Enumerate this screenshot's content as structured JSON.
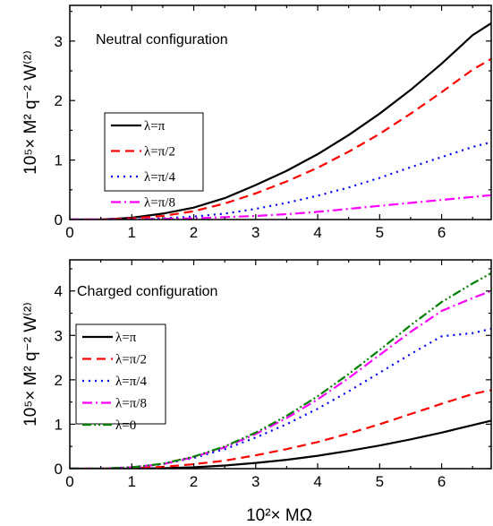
{
  "chart_data": [
    {
      "type": "line",
      "title": "Neutral configuration",
      "xlabel": "",
      "ylabel": "10⁵× M² q⁻² W⁽²⁾",
      "xlim": [
        0,
        6.8
      ],
      "ylim": [
        0,
        3.6
      ],
      "xticks": [
        0,
        1,
        2,
        3,
        4,
        5,
        6
      ],
      "yticks": [
        0,
        1,
        2,
        3
      ],
      "grid": false,
      "legend_position": "left-middle",
      "x": [
        0,
        0.5,
        1.0,
        1.5,
        2.0,
        2.5,
        3.0,
        3.5,
        4.0,
        4.5,
        5.0,
        5.5,
        6.0,
        6.5,
        6.8
      ],
      "series": [
        {
          "name": "λ=π",
          "color": "#000000",
          "dash": "solid",
          "values": [
            0,
            0.0,
            0.03,
            0.1,
            0.2,
            0.36,
            0.58,
            0.82,
            1.1,
            1.42,
            1.78,
            2.18,
            2.62,
            3.1,
            3.3
          ]
        },
        {
          "name": "λ=π/2",
          "color": "#ff0000",
          "dash": "dash",
          "values": [
            0,
            0.0,
            0.02,
            0.06,
            0.14,
            0.27,
            0.44,
            0.64,
            0.87,
            1.14,
            1.44,
            1.78,
            2.14,
            2.52,
            2.7
          ]
        },
        {
          "name": "λ=π/4",
          "color": "#0000ff",
          "dash": "dot",
          "values": [
            0,
            0.0,
            0.0,
            0.02,
            0.05,
            0.1,
            0.18,
            0.28,
            0.4,
            0.54,
            0.7,
            0.88,
            1.05,
            1.22,
            1.3
          ]
        },
        {
          "name": "λ=π/8",
          "color": "#ff00ff",
          "dash": "dashdot",
          "values": [
            0,
            0.0,
            0.0,
            0.01,
            0.02,
            0.04,
            0.06,
            0.09,
            0.13,
            0.18,
            0.23,
            0.28,
            0.33,
            0.38,
            0.41
          ]
        }
      ]
    },
    {
      "type": "line",
      "title": "Charged configuration",
      "xlabel": "10²× MΩ",
      "ylabel": "10⁵× M² q⁻² W⁽²⁾",
      "xlim": [
        0,
        6.8
      ],
      "ylim": [
        0,
        4.7
      ],
      "xticks": [
        0,
        1,
        2,
        3,
        4,
        5,
        6
      ],
      "yticks": [
        0,
        1,
        2,
        3,
        4
      ],
      "grid": false,
      "legend_position": "left-middle",
      "x": [
        0,
        0.5,
        1.0,
        1.5,
        2.0,
        2.5,
        3.0,
        3.5,
        4.0,
        4.5,
        5.0,
        5.5,
        6.0,
        6.5,
        6.8
      ],
      "series": [
        {
          "name": "λ=π",
          "color": "#000000",
          "dash": "solid",
          "values": [
            0,
            0.0,
            0.0,
            0.01,
            0.03,
            0.07,
            0.13,
            0.2,
            0.29,
            0.4,
            0.52,
            0.66,
            0.81,
            0.98,
            1.08
          ]
        },
        {
          "name": "λ=π/2",
          "color": "#ff0000",
          "dash": "dash",
          "values": [
            0,
            0.0,
            0.01,
            0.04,
            0.1,
            0.18,
            0.3,
            0.44,
            0.6,
            0.79,
            1.0,
            1.23,
            1.46,
            1.68,
            1.77
          ]
        },
        {
          "name": "λ=π/4",
          "color": "#0000ff",
          "dash": "dot",
          "values": [
            0,
            0.0,
            0.03,
            0.1,
            0.24,
            0.44,
            0.7,
            1.0,
            1.35,
            1.74,
            2.16,
            2.58,
            2.98,
            3.05,
            3.15
          ]
        },
        {
          "name": "λ=π/8",
          "color": "#ff00ff",
          "dash": "dashdot",
          "values": [
            0,
            0.0,
            0.03,
            0.1,
            0.26,
            0.48,
            0.78,
            1.14,
            1.56,
            2.04,
            2.56,
            3.08,
            3.55,
            3.84,
            4.0
          ]
        },
        {
          "name": "λ=0",
          "color": "#008000",
          "dash": "dashdotdot",
          "values": [
            0,
            0.0,
            0.03,
            0.11,
            0.27,
            0.5,
            0.81,
            1.19,
            1.63,
            2.13,
            2.67,
            3.23,
            3.75,
            4.17,
            4.4
          ]
        }
      ]
    }
  ]
}
